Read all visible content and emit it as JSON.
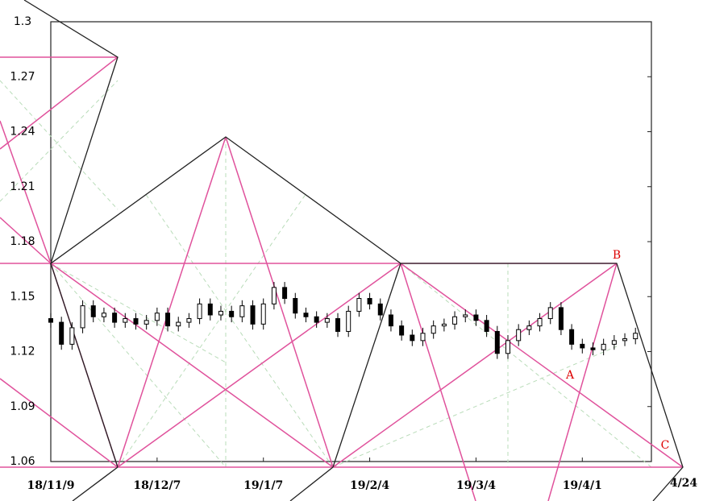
{
  "chart_data": {
    "type": "candlestick",
    "x": [
      0,
      2,
      4,
      6,
      8,
      10,
      12,
      14,
      16,
      18,
      20,
      22,
      24,
      26,
      28,
      30,
      32,
      34,
      36,
      38,
      40,
      42,
      44,
      46,
      48,
      50,
      52,
      54,
      56,
      58,
      60,
      62,
      64,
      66,
      68,
      70,
      72,
      74,
      76,
      78,
      80,
      82,
      84,
      86,
      88,
      90,
      92,
      94,
      96,
      98,
      100,
      102,
      104,
      106,
      108,
      110
    ],
    "open": [
      1.138,
      1.136,
      1.124,
      1.133,
      1.145,
      1.139,
      1.141,
      1.136,
      1.138,
      1.135,
      1.137,
      1.141,
      1.134,
      1.136,
      1.138,
      1.146,
      1.14,
      1.142,
      1.139,
      1.145,
      1.135,
      1.146,
      1.155,
      1.149,
      1.141,
      1.139,
      1.136,
      1.138,
      1.131,
      1.142,
      1.149,
      1.146,
      1.14,
      1.134,
      1.129,
      1.126,
      1.13,
      1.134,
      1.135,
      1.139,
      1.14,
      1.137,
      1.131,
      1.119,
      1.126,
      1.132,
      1.134,
      1.138,
      1.144,
      1.132,
      1.124,
      1.122,
      1.121,
      1.124,
      1.126,
      1.127
    ],
    "high": [
      1.141,
      1.139,
      1.136,
      1.148,
      1.148,
      1.144,
      1.144,
      1.141,
      1.141,
      1.14,
      1.144,
      1.144,
      1.139,
      1.141,
      1.149,
      1.149,
      1.145,
      1.145,
      1.148,
      1.148,
      1.149,
      1.158,
      1.158,
      1.152,
      1.144,
      1.142,
      1.141,
      1.141,
      1.145,
      1.152,
      1.152,
      1.149,
      1.143,
      1.137,
      1.132,
      1.133,
      1.137,
      1.138,
      1.142,
      1.143,
      1.143,
      1.14,
      1.134,
      1.129,
      1.135,
      1.137,
      1.141,
      1.147,
      1.147,
      1.135,
      1.127,
      1.125,
      1.127,
      1.129,
      1.13,
      1.133
    ],
    "low": [
      1.133,
      1.121,
      1.121,
      1.13,
      1.136,
      1.136,
      1.133,
      1.133,
      1.132,
      1.132,
      1.134,
      1.131,
      1.131,
      1.133,
      1.135,
      1.137,
      1.137,
      1.136,
      1.136,
      1.132,
      1.132,
      1.143,
      1.146,
      1.138,
      1.136,
      1.133,
      1.133,
      1.128,
      1.128,
      1.139,
      1.143,
      1.137,
      1.131,
      1.126,
      1.123,
      1.123,
      1.127,
      1.131,
      1.132,
      1.136,
      1.134,
      1.128,
      1.116,
      1.116,
      1.123,
      1.129,
      1.131,
      1.135,
      1.129,
      1.121,
      1.119,
      1.118,
      1.118,
      1.121,
      1.123,
      1.124
    ],
    "close": [
      1.136,
      1.124,
      1.133,
      1.145,
      1.139,
      1.141,
      1.136,
      1.138,
      1.135,
      1.137,
      1.141,
      1.134,
      1.136,
      1.138,
      1.146,
      1.14,
      1.142,
      1.139,
      1.145,
      1.135,
      1.146,
      1.155,
      1.149,
      1.141,
      1.139,
      1.136,
      1.138,
      1.131,
      1.142,
      1.149,
      1.146,
      1.14,
      1.134,
      1.129,
      1.126,
      1.13,
      1.134,
      1.135,
      1.139,
      1.14,
      1.137,
      1.131,
      1.119,
      1.126,
      1.132,
      1.134,
      1.138,
      1.144,
      1.132,
      1.124,
      1.122,
      1.121,
      1.124,
      1.126,
      1.127,
      1.13
    ],
    "xlim": [
      0,
      113
    ],
    "xticks": [
      {
        "value": 0,
        "label": "18/11/9"
      },
      {
        "value": 20,
        "label": "18/12/7"
      },
      {
        "value": 40,
        "label": "19/1/7"
      },
      {
        "value": 60,
        "label": "19/2/4"
      },
      {
        "value": 80,
        "label": "19/3/4"
      },
      {
        "value": 100,
        "label": "19/4/1"
      }
    ],
    "ylim": [
      1.06,
      1.3
    ],
    "yticks": [
      1.06,
      1.09,
      1.12,
      1.15,
      1.18,
      1.21,
      1.24,
      1.27,
      1.3
    ],
    "up_color": "#ffffff",
    "down_color": "#000000",
    "annotations": [
      "A",
      "B",
      "C",
      "4/24"
    ]
  }
}
